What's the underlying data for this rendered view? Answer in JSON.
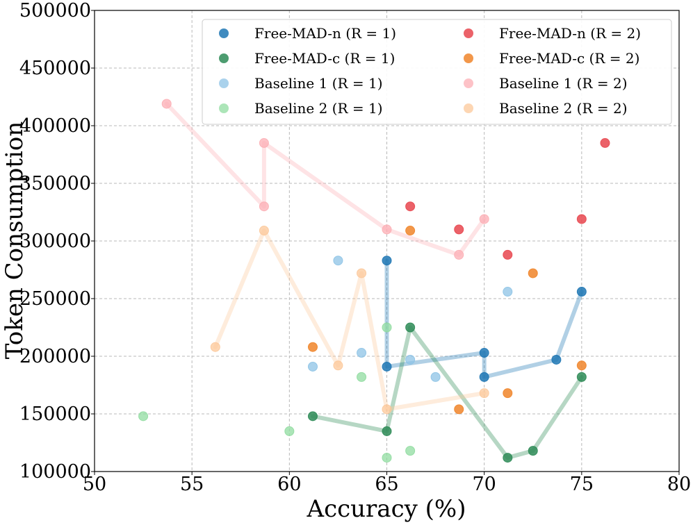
{
  "chart_data": {
    "type": "scatter",
    "xlabel": "Accuracy (%)",
    "ylabel": "Token Consumption",
    "xlim": [
      50,
      80
    ],
    "ylim": [
      100000,
      500000
    ],
    "xticks": [
      "50",
      "55",
      "60",
      "65",
      "70",
      "75",
      "80"
    ],
    "yticks": [
      "100000",
      "150000",
      "200000",
      "250000",
      "300000",
      "350000",
      "400000",
      "450000",
      "500000"
    ],
    "grid": true,
    "legend_position": "top-right",
    "series": [
      {
        "name": "FREE-MAD-n (R = 1)",
        "legend_label": "Free-MAD-n (R = 1)",
        "color": "#1f77b4",
        "alpha": 0.85,
        "connected": true,
        "points": [
          [
            65,
            283000
          ],
          [
            65,
            191000
          ],
          [
            70,
            203000
          ],
          [
            70,
            182000
          ],
          [
            73.7,
            197000
          ],
          [
            75,
            256000
          ]
        ]
      },
      {
        "name": "FREE-MAD-c (R = 1)",
        "legend_label": "Free-MAD-c (R = 1)",
        "color": "#2e8b57",
        "alpha": 0.85,
        "connected": true,
        "points": [
          [
            61.2,
            148000
          ],
          [
            65,
            135000
          ],
          [
            66.2,
            225000
          ],
          [
            71.2,
            112000
          ],
          [
            72.5,
            118000
          ],
          [
            75,
            182000
          ]
        ]
      },
      {
        "name": "Baseline 1 (R = 1)",
        "legend_label": "Baseline 1 (R = 1)",
        "color": "#8dc3e6",
        "alpha": 0.75,
        "connected": false,
        "points": [
          [
            61.2,
            191000
          ],
          [
            62.5,
            283000
          ],
          [
            63.7,
            203000
          ],
          [
            66.2,
            197000
          ],
          [
            67.5,
            182000
          ],
          [
            71.2,
            256000
          ]
        ]
      },
      {
        "name": "Baseline 2 (R = 1)",
        "legend_label": "Baseline 2 (R = 1)",
        "color": "#90dca0",
        "alpha": 0.75,
        "connected": false,
        "points": [
          [
            52.5,
            148000
          ],
          [
            60,
            135000
          ],
          [
            63.7,
            182000
          ],
          [
            65,
            225000
          ],
          [
            65,
            112000
          ],
          [
            66.2,
            118000
          ]
        ]
      },
      {
        "name": "FREE-MAD-n (R = 2)",
        "legend_label": "Free-MAD-n (R = 2)",
        "color": "#e8474f",
        "alpha": 0.85,
        "connected": false,
        "points": [
          [
            66.2,
            330000
          ],
          [
            68.7,
            310000
          ],
          [
            71.2,
            288000
          ],
          [
            75,
            319000
          ],
          [
            76.2,
            385000
          ]
        ]
      },
      {
        "name": "FREE-MAD-c (R = 2)",
        "legend_label": "Free-MAD-c (R = 2)",
        "color": "#f0852a",
        "alpha": 0.85,
        "connected": false,
        "points": [
          [
            61.2,
            208000
          ],
          [
            66.2,
            309000
          ],
          [
            68.7,
            154000
          ],
          [
            71.2,
            168000
          ],
          [
            72.5,
            272000
          ],
          [
            75,
            192000
          ]
        ]
      },
      {
        "name": "Baseline 1 (R = 2)",
        "legend_label": "Baseline 1 (R = 2)",
        "color": "#fcaeb4",
        "alpha": 0.75,
        "connected": true,
        "points": [
          [
            53.7,
            419000
          ],
          [
            58.7,
            330000
          ],
          [
            58.7,
            385000
          ],
          [
            65,
            310000
          ],
          [
            68.7,
            288000
          ],
          [
            70,
            319000
          ]
        ]
      },
      {
        "name": "Baseline 2 (R = 2)",
        "legend_label": "Baseline 2 (R = 2)",
        "color": "#fcc89a",
        "alpha": 0.75,
        "connected": true,
        "points": [
          [
            56.2,
            208000
          ],
          [
            58.7,
            309000
          ],
          [
            62.5,
            192000
          ],
          [
            63.7,
            272000
          ],
          [
            65,
            154000
          ],
          [
            70,
            168000
          ]
        ]
      }
    ]
  }
}
